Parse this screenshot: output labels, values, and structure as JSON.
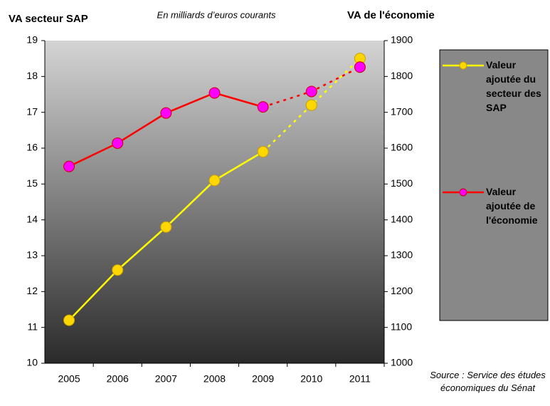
{
  "chart_data": {
    "type": "line",
    "y_title": "VA secteur SAP",
    "y2_title": "VA de l'économie",
    "subtitle": "En milliards d’euros courants",
    "source": "Source : Service des études économiques du Sénat",
    "categories": [
      "2005",
      "2006",
      "2007",
      "2008",
      "2009",
      "2010",
      "2011"
    ],
    "ylim": [
      10,
      19
    ],
    "yticks": [
      10,
      11,
      12,
      13,
      14,
      15,
      16,
      17,
      18,
      19
    ],
    "y2lim": [
      1000,
      1900
    ],
    "y2ticks": [
      1000,
      1100,
      1200,
      1300,
      1400,
      1500,
      1600,
      1700,
      1800,
      1900
    ],
    "series": [
      {
        "name": "Valeur ajoutée du secteur des SAP",
        "color": "#ffff00",
        "marker_color": "#ffd700",
        "dash_from": "2009",
        "values": [
          11.2,
          12.6,
          13.8,
          15.1,
          15.9,
          17.2,
          18.5
        ]
      },
      {
        "name": "Valeur ajoutée de l'économie",
        "color": "#ff0000",
        "marker_color": "#ff00ff",
        "dash_from": "2009",
        "axis": "y2",
        "values": [
          1549,
          1614,
          1698,
          1754,
          1715,
          1758,
          1826
        ]
      }
    ]
  }
}
